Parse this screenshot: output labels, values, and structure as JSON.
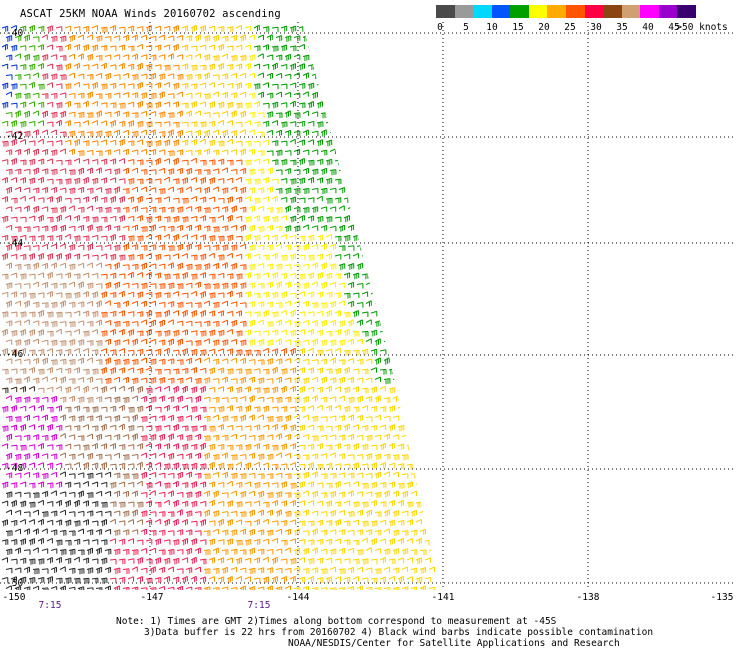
{
  "title": "ASCAT 25KM NOAA Winds 20160702 ascending",
  "colorbar": {
    "labels": [
      "0",
      "5",
      "10",
      "15",
      "20",
      "25",
      "30",
      "35",
      "40",
      "45",
      ">50 knots"
    ],
    "colors": [
      "#4a4a4a",
      "#9a9a9a",
      "#00d8ff",
      "#0055ff",
      "#00a000",
      "#ffff00",
      "#ffaa00",
      "#ff5500",
      "#ff0044",
      "#8b4513",
      "#d0a070",
      "#ff00ff",
      "#9900cc",
      "#3a0070"
    ]
  },
  "map": {
    "lat_labels": [
      "-40",
      "-42",
      "-44",
      "-46",
      "-48",
      "-50"
    ],
    "lon_labels": [
      "-150",
      "-147",
      "-144",
      "-141",
      "-138",
      "-135"
    ],
    "time_labels": [
      "7:15",
      "7:15"
    ],
    "wind_barb_color_scale": [
      "black",
      "brown",
      "pink",
      "magenta",
      "red",
      "orange",
      "yellow",
      "green",
      "blue"
    ]
  },
  "note": {
    "line1": "Note: 1) Times are GMT 2)Times along bottom correspond to measurement at -45S",
    "line2": "3)Data buffer is 22 hrs from 20160702 4) Black wind barbs indicate possible contamination",
    "line3": "NOAA/NESDIS/Center for Satellite Applications and Research"
  }
}
